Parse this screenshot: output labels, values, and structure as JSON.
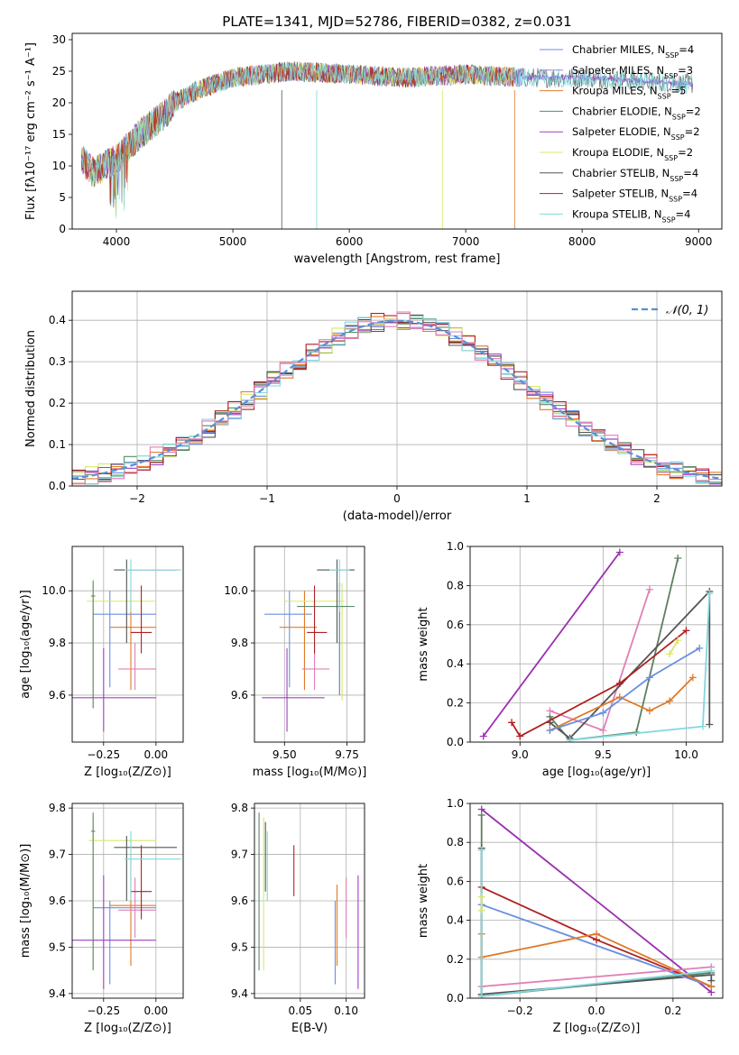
{
  "title": "PLATE=1341, MJD=52786, FIBERID=0382, z=0.031",
  "colors": {
    "cm": "#6a8fe0",
    "sm": "#8e8ed8",
    "km": "#e07a28",
    "ce": "#5a8a6a",
    "se": "#a040c0",
    "ke": "#d9e86a",
    "cs": "#555555",
    "ss": "#b02020",
    "ks": "#80d8de",
    "pink": "#e07fb5",
    "grn": "#5e7f5e",
    "purple": "#9a30b0",
    "gauss": "#5a8fd6"
  },
  "chart_data": [
    {
      "id": "spectrum",
      "type": "line",
      "xlabel": "wavelength [Angstrom, rest frame]",
      "ylabel": "Flux [fλ10⁻¹⁷ erg cm⁻² s⁻¹ A⁻¹]",
      "xlim": [
        3620,
        9200
      ],
      "ylim": [
        0,
        31
      ],
      "xticks": [
        "4000",
        "5000",
        "6000",
        "7000",
        "8000",
        "9000"
      ],
      "yticks": [
        "0",
        "5",
        "10",
        "15",
        "20",
        "25",
        "30"
      ],
      "continuum": {
        "x": [
          3700,
          3800,
          3900,
          4000,
          4100,
          4200,
          4300,
          4400,
          4500,
          4700,
          5000,
          5500,
          6000,
          6500,
          7000,
          7500,
          8000,
          8500,
          8900
        ],
        "y": [
          11,
          9,
          10,
          11,
          13,
          15,
          16.5,
          18,
          20,
          22,
          24,
          25,
          24.5,
          24,
          24.5,
          24,
          24,
          23.5,
          23
        ]
      },
      "legend": [
        {
          "label": "Chabrier MILES, N",
          "sub": "SSP",
          "suffix": "=4",
          "color": "cm"
        },
        {
          "label": "Salpeter MILES, N",
          "sub": "SSP",
          "suffix": "=3",
          "color": "sm"
        },
        {
          "label": "Kroupa MILES, N",
          "sub": "SSP",
          "suffix": "=5",
          "color": "km"
        },
        {
          "label": "Chabrier ELODIE, N",
          "sub": "SSP",
          "suffix": "=2",
          "color": "ce"
        },
        {
          "label": "Salpeter ELODIE, N",
          "sub": "SSP",
          "suffix": "=2",
          "color": "se"
        },
        {
          "label": "Kroupa ELODIE, N",
          "sub": "SSP",
          "suffix": "=2",
          "color": "ke"
        },
        {
          "label": "Chabrier STELIB, N",
          "sub": "SSP",
          "suffix": "=4",
          "color": "cs"
        },
        {
          "label": "Salpeter STELIB, N",
          "sub": "SSP",
          "suffix": "=4",
          "color": "ss"
        },
        {
          "label": "Kroupa STELIB, N",
          "sub": "SSP",
          "suffix": "=4",
          "color": "ks"
        }
      ]
    },
    {
      "id": "histogram",
      "type": "histogram",
      "xlabel": "(data-model)/error",
      "ylabel": "Normed distribution",
      "xlim": [
        -2.5,
        2.5
      ],
      "ylim": [
        0,
        0.47
      ],
      "xticks": [
        "−2",
        "−1",
        "0",
        "1",
        "2"
      ],
      "yticks": [
        "0.0",
        "0.1",
        "0.2",
        "0.3",
        "0.4"
      ],
      "gauss_label": "𝒩(0, 1)"
    },
    {
      "id": "Z-age",
      "type": "errorbar",
      "xlabel": "Z [log₁₀(Z/Z⊙)]",
      "ylabel": "age  [log₁₀(age/yr)]",
      "xlim": [
        -0.4,
        0.13
      ],
      "ylim": [
        9.42,
        10.17
      ],
      "xticks": [
        "−0.25",
        "0.00"
      ],
      "yticks": [
        "9.6",
        "9.8",
        "10.0"
      ],
      "points": [
        {
          "c": "cm",
          "x": -0.22,
          "y": 9.91,
          "xe": [
            -0.3,
            0.0
          ],
          "ye": [
            9.63,
            10.0
          ]
        },
        {
          "c": "km",
          "x": -0.12,
          "y": 9.86,
          "xe": [
            -0.22,
            0.0
          ],
          "ye": [
            9.62,
            10.0
          ]
        },
        {
          "c": "ke",
          "x": -0.3,
          "y": 9.96,
          "xe": [
            -0.33,
            0.0
          ],
          "ye": [
            9.55,
            10.03
          ]
        },
        {
          "c": "ce",
          "x": -0.3,
          "y": 9.98,
          "xe": [
            -0.31,
            -0.29
          ],
          "ye": [
            9.55,
            10.04
          ]
        },
        {
          "c": "se",
          "x": -0.25,
          "y": 9.59,
          "xe": [
            -0.4,
            0.0
          ],
          "ye": [
            9.46,
            9.78
          ]
        },
        {
          "c": "pink",
          "x": -0.1,
          "y": 9.7,
          "xe": [
            -0.18,
            0.0
          ],
          "ye": [
            9.62,
            9.8
          ]
        },
        {
          "c": "ss",
          "x": -0.07,
          "y": 9.84,
          "xe": [
            -0.12,
            -0.02
          ],
          "ye": [
            9.76,
            10.02
          ]
        },
        {
          "c": "cs",
          "x": -0.14,
          "y": 10.08,
          "xe": [
            -0.2,
            0.1
          ],
          "ye": [
            9.8,
            10.12
          ]
        },
        {
          "c": "ks",
          "x": -0.12,
          "y": 10.08,
          "xe": [
            -0.15,
            0.12
          ],
          "ye": [
            9.92,
            10.12
          ]
        }
      ]
    },
    {
      "id": "mass-age",
      "type": "errorbar",
      "xlabel": "mass [log₁₀(M/M⊙)]",
      "ylabel": "",
      "xlim": [
        9.38,
        9.82
      ],
      "ylim": [
        9.42,
        10.17
      ],
      "xticks": [
        "9.50",
        "9.75"
      ],
      "yticks": [
        "9.6",
        "9.8",
        "10.0"
      ],
      "points": [
        {
          "c": "cm",
          "x": 9.52,
          "y": 9.91,
          "xe": [
            9.42,
            9.61
          ],
          "ye": [
            9.63,
            10.0
          ]
        },
        {
          "c": "km",
          "x": 9.58,
          "y": 9.86,
          "xe": [
            9.48,
            9.63
          ],
          "ye": [
            9.62,
            10.0
          ]
        },
        {
          "c": "ke",
          "x": 9.73,
          "y": 9.96,
          "xe": [
            9.5,
            9.74
          ],
          "ye": [
            9.58,
            10.03
          ]
        },
        {
          "c": "ce",
          "x": 9.72,
          "y": 9.94,
          "xe": [
            9.55,
            9.78
          ],
          "ye": [
            9.6,
            10.03
          ]
        },
        {
          "c": "se",
          "x": 9.51,
          "y": 9.59,
          "xe": [
            9.41,
            9.66
          ],
          "ye": [
            9.46,
            9.78
          ]
        },
        {
          "c": "pink",
          "x": 9.62,
          "y": 9.7,
          "xe": [
            9.57,
            9.68
          ],
          "ye": [
            9.62,
            9.8
          ]
        },
        {
          "c": "ss",
          "x": 9.62,
          "y": 9.84,
          "xe": [
            9.59,
            9.67
          ],
          "ye": [
            9.76,
            10.02
          ]
        },
        {
          "c": "cs",
          "x": 9.71,
          "y": 10.08,
          "xe": [
            9.63,
            9.78
          ],
          "ye": [
            9.8,
            10.12
          ]
        },
        {
          "c": "ks",
          "x": 9.72,
          "y": 10.08,
          "xe": [
            9.68,
            9.76
          ],
          "ye": [
            9.92,
            10.12
          ]
        }
      ]
    },
    {
      "id": "age-weight",
      "type": "line",
      "xlabel": "age  [log₁₀(age/yr)]",
      "ylabel": "mass weight",
      "xlim": [
        8.7,
        10.22
      ],
      "ylim": [
        0,
        1.0
      ],
      "xticks": [
        "9.0",
        "9.5",
        "10.0"
      ],
      "yticks": [
        "0.0",
        "0.2",
        "0.4",
        "0.6",
        "0.8",
        "1.0"
      ],
      "series": [
        {
          "c": "purple",
          "x": [
            8.78,
            9.6
          ],
          "y": [
            0.03,
            0.97
          ]
        },
        {
          "c": "grn",
          "x": [
            9.18,
            9.3,
            9.7,
            9.95
          ],
          "y": [
            0.13,
            0.01,
            0.05,
            0.94
          ]
        },
        {
          "c": "pink",
          "x": [
            9.18,
            9.5,
            9.78
          ],
          "y": [
            0.16,
            0.06,
            0.78
          ]
        },
        {
          "c": "cs",
          "x": [
            9.18,
            9.3,
            10.14,
            10.14
          ],
          "y": [
            0.1,
            0.02,
            0.77,
            0.09
          ]
        },
        {
          "c": "ss",
          "x": [
            8.95,
            9.0,
            9.6,
            10.0
          ],
          "y": [
            0.1,
            0.03,
            0.3,
            0.57
          ]
        },
        {
          "c": "km",
          "x": [
            9.18,
            9.6,
            9.78,
            9.9,
            10.04
          ],
          "y": [
            0.06,
            0.23,
            0.16,
            0.21,
            0.33
          ]
        },
        {
          "c": "cm",
          "x": [
            9.18,
            9.5,
            9.78,
            10.08
          ],
          "y": [
            0.06,
            0.15,
            0.33,
            0.48
          ]
        },
        {
          "c": "ke",
          "x": [
            9.9,
            9.95
          ],
          "y": [
            0.45,
            0.52
          ]
        },
        {
          "c": "ks",
          "x": [
            9.3,
            10.1,
            10.14
          ],
          "y": [
            0.01,
            0.08,
            0.76
          ]
        }
      ]
    },
    {
      "id": "Z-mass",
      "type": "errorbar",
      "xlabel": "Z [log₁₀(Z/Z⊙)]",
      "ylabel": "mass [log₁₀(M/M⊙)]",
      "xlim": [
        -0.4,
        0.13
      ],
      "ylim": [
        9.39,
        9.81
      ],
      "xticks": [
        "−0.25",
        "0.00"
      ],
      "yticks": [
        "9.4",
        "9.5",
        "9.6",
        "9.7",
        "9.8"
      ],
      "points": [
        {
          "c": "cm",
          "x": -0.22,
          "y": 9.585,
          "xe": [
            -0.3,
            0.0
          ],
          "ye": [
            9.42,
            9.6
          ]
        },
        {
          "c": "km",
          "x": -0.12,
          "y": 9.59,
          "xe": [
            -0.22,
            0.0
          ],
          "ye": [
            9.46,
            9.7
          ]
        },
        {
          "c": "ke",
          "x": -0.3,
          "y": 9.73,
          "xe": [
            -0.32,
            0.0
          ],
          "ye": [
            9.45,
            9.78
          ]
        },
        {
          "c": "ce",
          "x": -0.3,
          "y": 9.75,
          "xe": [
            -0.31,
            -0.29
          ],
          "ye": [
            9.45,
            9.79
          ]
        },
        {
          "c": "se",
          "x": -0.25,
          "y": 9.515,
          "xe": [
            -0.4,
            0.0
          ],
          "ye": [
            9.41,
            9.655
          ]
        },
        {
          "c": "pink",
          "x": -0.1,
          "y": 9.58,
          "xe": [
            -0.18,
            0.0
          ],
          "ye": [
            9.52,
            9.65
          ]
        },
        {
          "c": "ss",
          "x": -0.07,
          "y": 9.62,
          "xe": [
            -0.12,
            -0.02
          ],
          "ye": [
            9.56,
            9.72
          ]
        },
        {
          "c": "cs",
          "x": -0.14,
          "y": 9.715,
          "xe": [
            -0.2,
            0.1
          ],
          "ye": [
            9.6,
            9.74
          ]
        },
        {
          "c": "ks",
          "x": -0.12,
          "y": 9.69,
          "xe": [
            -0.15,
            0.12
          ],
          "ye": [
            9.6,
            9.75
          ]
        }
      ]
    },
    {
      "id": "ebv-mass",
      "type": "errorbar",
      "xlabel": "E(B-V)",
      "ylabel": "",
      "xlim": [
        0.0,
        0.12
      ],
      "ylim": [
        9.39,
        9.81
      ],
      "xticks": [
        "0.05",
        "0.10"
      ],
      "yticks": [
        "9.4",
        "9.5",
        "9.6",
        "9.7",
        "9.8"
      ],
      "points": [
        {
          "c": "ce",
          "x": 0.005,
          "y": 9.75,
          "xe": [
            0.005,
            0.005
          ],
          "ye": [
            9.45,
            9.79
          ]
        },
        {
          "c": "ke",
          "x": 0.01,
          "y": 9.73,
          "xe": [
            0.01,
            0.01
          ],
          "ye": [
            9.45,
            9.78
          ]
        },
        {
          "c": "cs",
          "x": 0.012,
          "y": 9.7,
          "xe": [
            0.012,
            0.012
          ],
          "ye": [
            9.62,
            9.77
          ]
        },
        {
          "c": "ks",
          "x": 0.014,
          "y": 9.69,
          "xe": [
            0.014,
            0.014
          ],
          "ye": [
            9.6,
            9.75
          ]
        },
        {
          "c": "ss",
          "x": 0.043,
          "y": 9.67,
          "xe": [
            0.043,
            0.043
          ],
          "ye": [
            9.61,
            9.72
          ]
        },
        {
          "c": "cm",
          "x": 0.088,
          "y": 9.5,
          "xe": [
            0.088,
            0.088
          ],
          "ye": [
            9.42,
            9.6
          ]
        },
        {
          "c": "km",
          "x": 0.09,
          "y": 9.55,
          "xe": [
            0.09,
            0.09
          ],
          "ye": [
            9.46,
            9.635
          ]
        },
        {
          "c": "pink",
          "x": 0.1,
          "y": 9.58,
          "xe": [
            0.1,
            0.1
          ],
          "ye": [
            9.52,
            9.65
          ]
        },
        {
          "c": "se",
          "x": 0.113,
          "y": 9.53,
          "xe": [
            0.113,
            0.113
          ],
          "ye": [
            9.41,
            9.655
          ]
        }
      ]
    },
    {
      "id": "Z-weight",
      "type": "line",
      "xlabel": "Z [log₁₀(Z/Z⊙)]",
      "ylabel": "mass weight",
      "xlim": [
        -0.33,
        0.33
      ],
      "ylim": [
        0,
        1.0
      ],
      "xticks": [
        "−0.2",
        "0.0",
        "0.2"
      ],
      "yticks": [
        "0.0",
        "0.2",
        "0.4",
        "0.6",
        "0.8",
        "1.0"
      ],
      "series": [
        {
          "c": "purple",
          "x": [
            -0.3,
            0.3
          ],
          "y": [
            0.97,
            0.03
          ]
        },
        {
          "c": "grn",
          "x": [
            -0.3,
            -0.3,
            0.3
          ],
          "y": [
            0.94,
            0.01,
            0.13
          ]
        },
        {
          "c": "cs",
          "x": [
            -0.3,
            -0.3,
            0.3,
            0.3
          ],
          "y": [
            0.77,
            0.02,
            0.12,
            0.09
          ]
        },
        {
          "c": "ss",
          "x": [
            -0.3,
            0.0,
            0.3
          ],
          "y": [
            0.57,
            0.3,
            0.06
          ]
        },
        {
          "c": "cm",
          "x": [
            -0.3,
            0.3
          ],
          "y": [
            0.48,
            0.06
          ]
        },
        {
          "c": "km",
          "x": [
            -0.3,
            -0.3,
            0.0,
            0.3
          ],
          "y": [
            0.33,
            0.21,
            0.33,
            0.06
          ]
        },
        {
          "c": "pink",
          "x": [
            -0.3,
            0.3
          ],
          "y": [
            0.06,
            0.16
          ]
        },
        {
          "c": "ks",
          "x": [
            -0.3,
            -0.3,
            0.3
          ],
          "y": [
            0.76,
            0.01,
            0.14
          ]
        },
        {
          "c": "ke",
          "x": [
            -0.3,
            -0.3
          ],
          "y": [
            0.45,
            0.52
          ]
        }
      ]
    }
  ]
}
